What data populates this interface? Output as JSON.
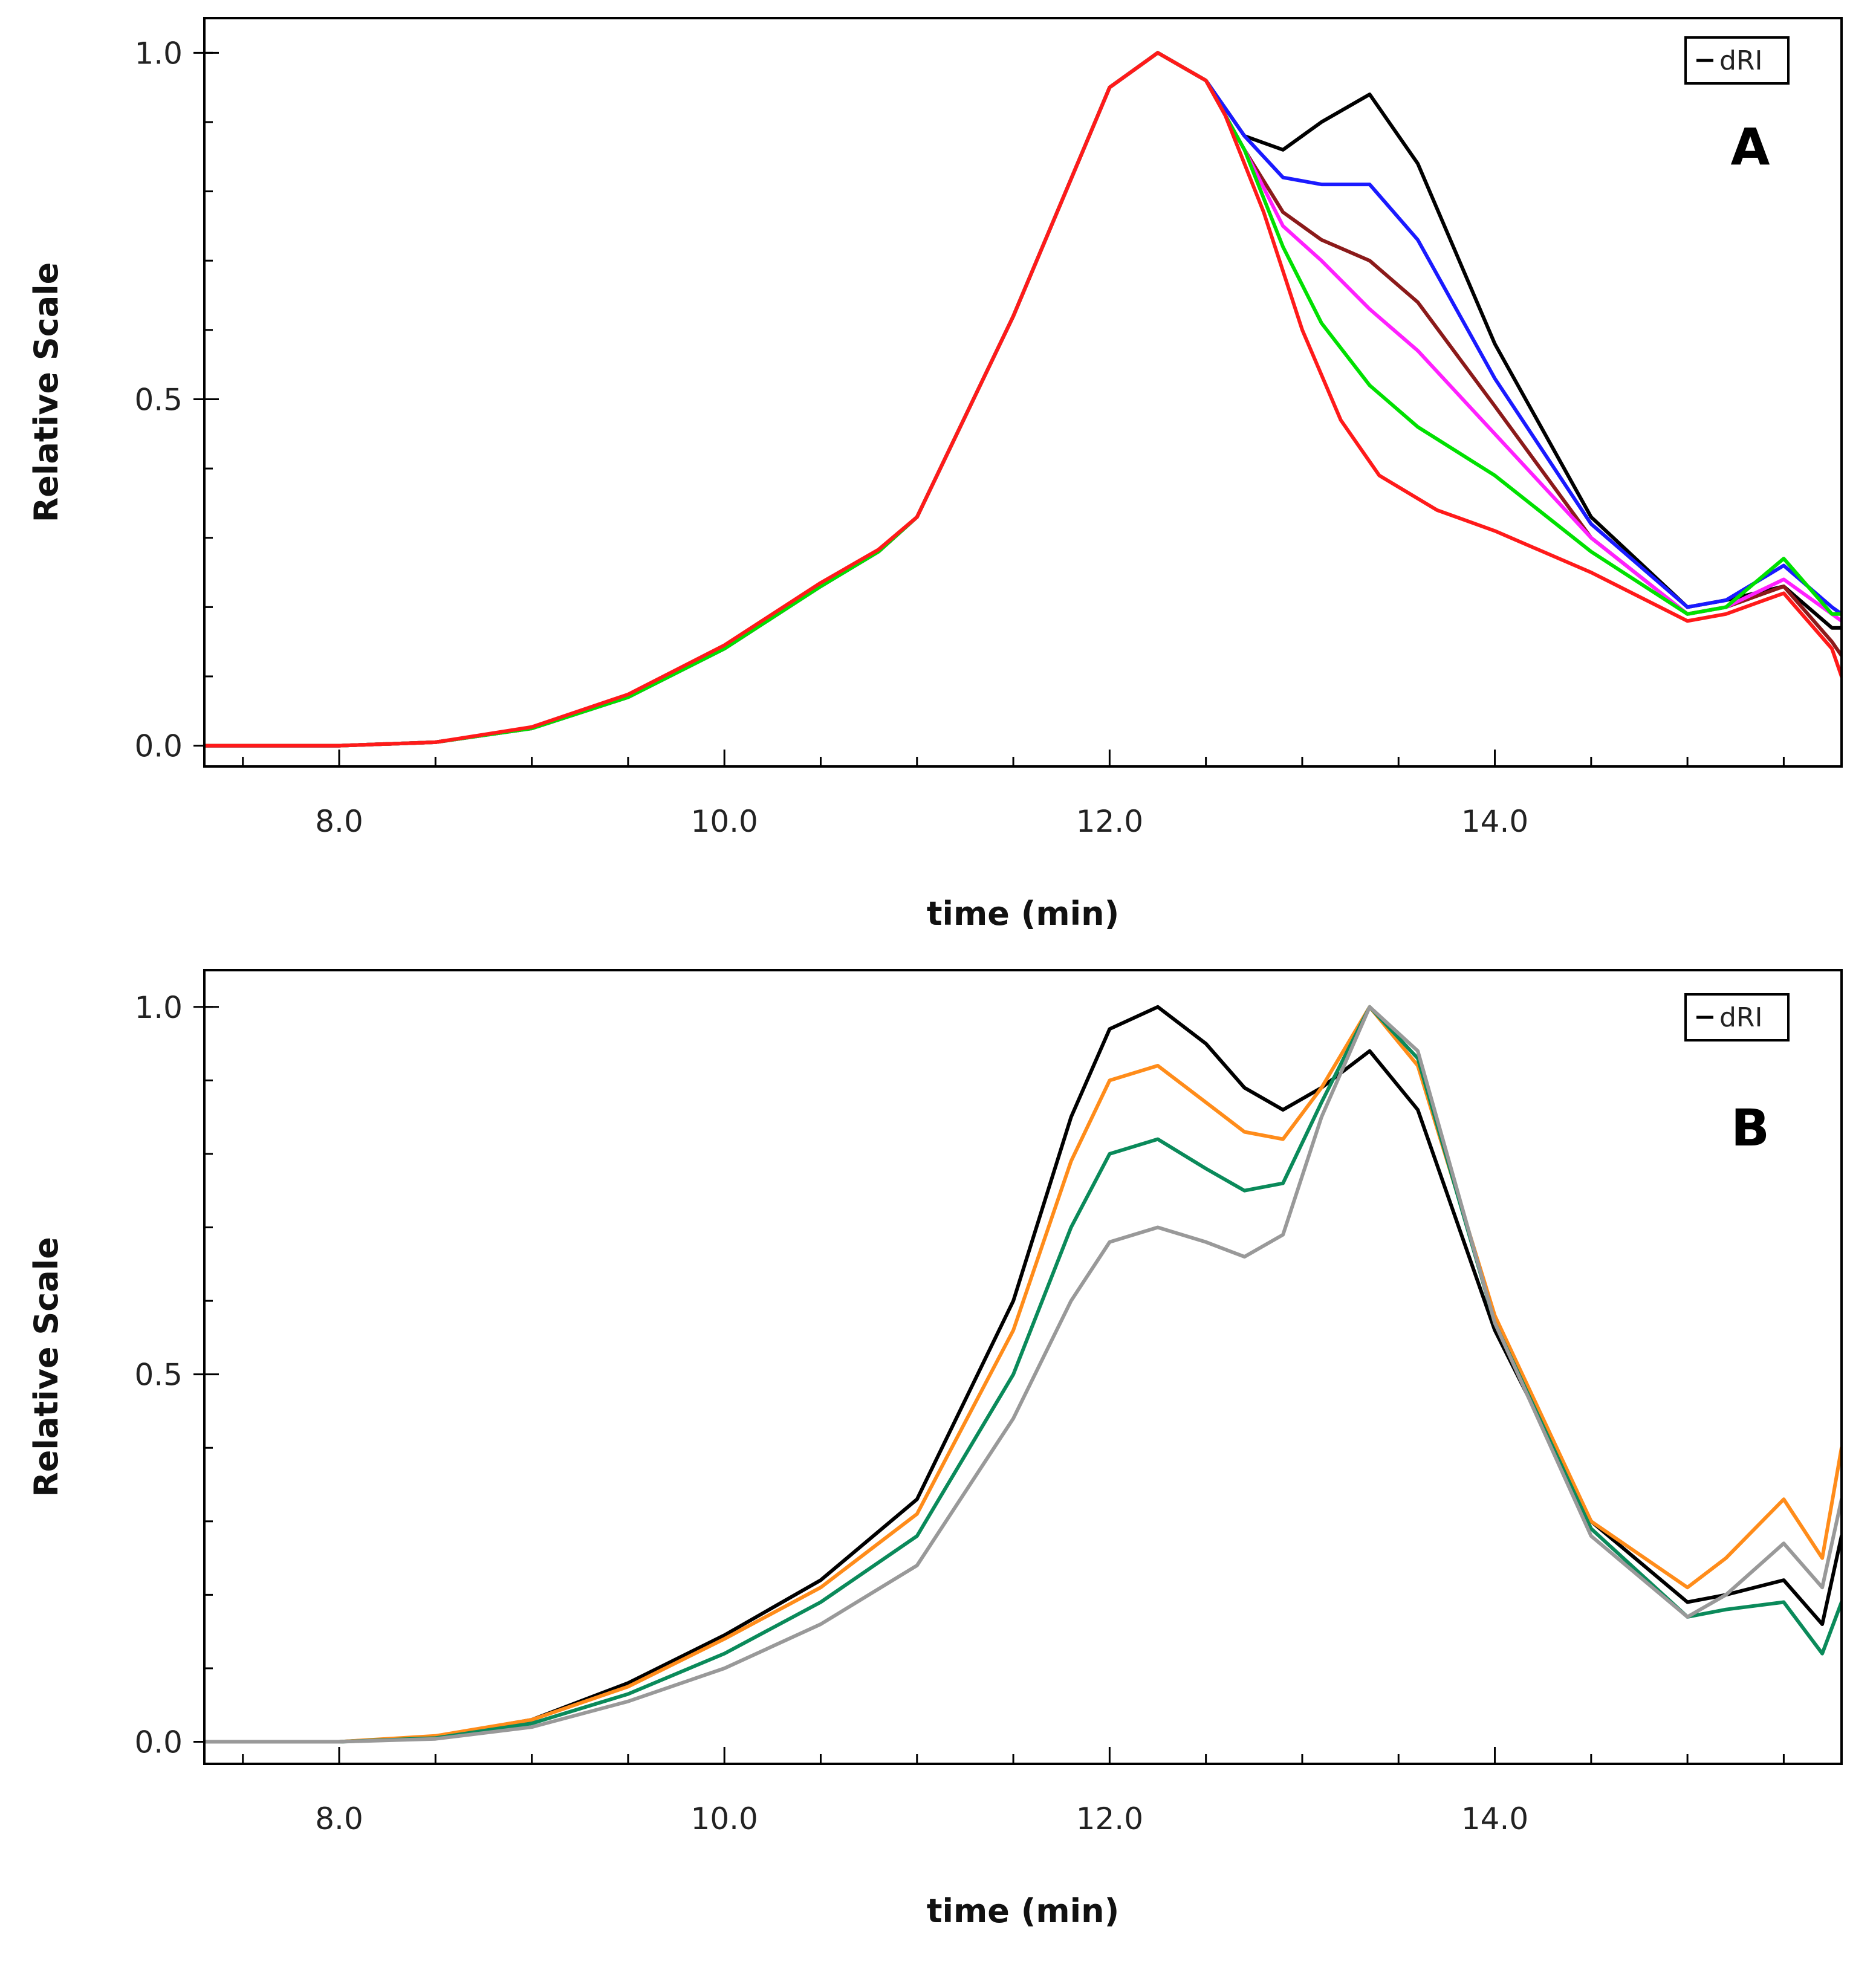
{
  "chart_data": [
    {
      "type": "line",
      "panel_label": "A",
      "xlabel": "time (min)",
      "ylabel": "Relative Scale",
      "xlim": [
        7.3,
        15.8
      ],
      "ylim": [
        -0.03,
        1.05
      ],
      "x_ticks": [
        8.0,
        10.0,
        12.0,
        14.0
      ],
      "x_tick_labels": [
        "8.0",
        "10.0",
        "12.0",
        "14.0"
      ],
      "y_ticks": [
        0.0,
        0.5,
        1.0
      ],
      "y_tick_labels": [
        "0.0",
        "0.5",
        "1.0"
      ],
      "grid": false,
      "legend": {
        "position": "top-right",
        "entries": [
          "dRI"
        ]
      },
      "series": [
        {
          "color": "#000000",
          "x": [
            7.3,
            8.0,
            8.5,
            9.0,
            9.5,
            10.0,
            10.5,
            10.8,
            11.0,
            11.5,
            12.0,
            12.25,
            12.5,
            12.7,
            12.9,
            13.1,
            13.35,
            13.6,
            14.0,
            14.5,
            15.0,
            15.2,
            15.5,
            15.75,
            15.8
          ],
          "values": [
            0,
            0,
            0.005,
            0.025,
            0.07,
            0.14,
            0.23,
            0.28,
            0.33,
            0.62,
            0.95,
            1.0,
            0.96,
            0.88,
            0.86,
            0.9,
            0.94,
            0.84,
            0.58,
            0.33,
            0.2,
            0.21,
            0.23,
            0.17,
            0.17
          ]
        },
        {
          "color": "#1a1aff",
          "x": [
            7.3,
            8.0,
            8.5,
            9.0,
            9.5,
            10.0,
            10.5,
            10.8,
            11.0,
            11.5,
            12.0,
            12.25,
            12.5,
            12.7,
            12.9,
            13.1,
            13.35,
            13.6,
            14.0,
            14.5,
            15.0,
            15.2,
            15.5,
            15.75,
            15.8
          ],
          "values": [
            0,
            0,
            0.005,
            0.025,
            0.07,
            0.14,
            0.23,
            0.28,
            0.33,
            0.62,
            0.95,
            1.0,
            0.96,
            0.88,
            0.82,
            0.81,
            0.81,
            0.73,
            0.53,
            0.32,
            0.2,
            0.21,
            0.26,
            0.2,
            0.19
          ]
        },
        {
          "color": "#8b1a1a",
          "x": [
            7.3,
            8.0,
            8.5,
            9.0,
            9.5,
            10.0,
            10.5,
            10.8,
            11.0,
            11.5,
            12.0,
            12.25,
            12.5,
            12.7,
            12.9,
            13.1,
            13.35,
            13.6,
            14.0,
            14.5,
            15.0,
            15.2,
            15.5,
            15.75,
            15.8
          ],
          "values": [
            0,
            0,
            0.005,
            0.025,
            0.07,
            0.14,
            0.23,
            0.28,
            0.33,
            0.62,
            0.95,
            1.0,
            0.96,
            0.86,
            0.77,
            0.73,
            0.7,
            0.64,
            0.49,
            0.3,
            0.19,
            0.2,
            0.23,
            0.15,
            0.13
          ]
        },
        {
          "color": "#ff20ff",
          "x": [
            7.3,
            8.0,
            8.5,
            9.0,
            9.5,
            10.0,
            10.5,
            10.8,
            11.0,
            11.5,
            12.0,
            12.25,
            12.5,
            12.7,
            12.9,
            13.1,
            13.35,
            13.6,
            14.0,
            14.5,
            15.0,
            15.2,
            15.5,
            15.75,
            15.8
          ],
          "values": [
            0,
            0,
            0.005,
            0.025,
            0.07,
            0.14,
            0.23,
            0.28,
            0.33,
            0.62,
            0.95,
            1.0,
            0.96,
            0.86,
            0.75,
            0.7,
            0.63,
            0.57,
            0.45,
            0.3,
            0.19,
            0.2,
            0.24,
            0.19,
            0.18
          ]
        },
        {
          "color": "#00e000",
          "x": [
            7.3,
            8.0,
            8.5,
            9.0,
            9.5,
            10.0,
            10.5,
            10.8,
            11.0,
            11.5,
            12.0,
            12.25,
            12.5,
            12.7,
            12.9,
            13.1,
            13.35,
            13.6,
            14.0,
            14.5,
            15.0,
            15.2,
            15.5,
            15.75,
            15.8
          ],
          "values": [
            0,
            0,
            0.005,
            0.025,
            0.07,
            0.14,
            0.23,
            0.28,
            0.33,
            0.62,
            0.95,
            1.0,
            0.96,
            0.86,
            0.72,
            0.61,
            0.52,
            0.46,
            0.39,
            0.28,
            0.19,
            0.2,
            0.27,
            0.19,
            0.19
          ]
        },
        {
          "color": "#ff1a1a",
          "x": [
            7.3,
            8.0,
            8.5,
            9.0,
            9.5,
            10.0,
            10.5,
            10.8,
            11.0,
            11.5,
            12.0,
            12.25,
            12.5,
            12.6,
            12.8,
            13.0,
            13.2,
            13.4,
            13.7,
            14.0,
            14.5,
            15.0,
            15.2,
            15.5,
            15.75,
            15.8
          ],
          "values": [
            0,
            0,
            0.005,
            0.027,
            0.074,
            0.145,
            0.235,
            0.283,
            0.33,
            0.62,
            0.95,
            1.0,
            0.96,
            0.91,
            0.77,
            0.6,
            0.47,
            0.39,
            0.34,
            0.31,
            0.25,
            0.18,
            0.19,
            0.22,
            0.14,
            0.1
          ]
        }
      ]
    },
    {
      "type": "line",
      "panel_label": "B",
      "xlabel": "time (min)",
      "ylabel": "Relative Scale",
      "xlim": [
        7.3,
        15.8
      ],
      "ylim": [
        -0.03,
        1.05
      ],
      "x_ticks": [
        8.0,
        10.0,
        12.0,
        14.0
      ],
      "x_tick_labels": [
        "8.0",
        "10.0",
        "12.0",
        "14.0"
      ],
      "y_ticks": [
        0.0,
        0.5,
        1.0
      ],
      "y_tick_labels": [
        "0.0",
        "0.5",
        "1.0"
      ],
      "grid": false,
      "legend": {
        "position": "top-right",
        "entries": [
          "dRI"
        ]
      },
      "series": [
        {
          "color": "#000000",
          "x": [
            7.3,
            8.0,
            8.5,
            9.0,
            9.5,
            10.0,
            10.5,
            11.0,
            11.5,
            11.8,
            12.0,
            12.25,
            12.5,
            12.7,
            12.9,
            13.1,
            13.35,
            13.6,
            14.0,
            14.5,
            15.0,
            15.2,
            15.5,
            15.7,
            15.8
          ],
          "values": [
            0,
            0,
            0.007,
            0.03,
            0.08,
            0.145,
            0.22,
            0.33,
            0.6,
            0.85,
            0.97,
            1.0,
            0.95,
            0.89,
            0.86,
            0.89,
            0.94,
            0.86,
            0.56,
            0.3,
            0.19,
            0.2,
            0.22,
            0.16,
            0.28
          ]
        },
        {
          "color": "#ff8c1a",
          "x": [
            7.3,
            8.0,
            8.5,
            9.0,
            9.5,
            10.0,
            10.5,
            11.0,
            11.5,
            11.8,
            12.0,
            12.25,
            12.5,
            12.7,
            12.9,
            13.1,
            13.35,
            13.6,
            14.0,
            14.5,
            15.0,
            15.2,
            15.5,
            15.7,
            15.8
          ],
          "values": [
            0,
            0,
            0.008,
            0.03,
            0.075,
            0.14,
            0.21,
            0.31,
            0.56,
            0.79,
            0.9,
            0.92,
            0.87,
            0.83,
            0.82,
            0.89,
            1.0,
            0.92,
            0.58,
            0.3,
            0.21,
            0.25,
            0.33,
            0.25,
            0.4
          ]
        },
        {
          "color": "#0a8a5a",
          "x": [
            7.3,
            8.0,
            8.5,
            9.0,
            9.5,
            10.0,
            10.5,
            11.0,
            11.5,
            11.8,
            12.0,
            12.25,
            12.5,
            12.7,
            12.9,
            13.1,
            13.35,
            13.6,
            14.0,
            14.5,
            15.0,
            15.2,
            15.5,
            15.7,
            15.8
          ],
          "values": [
            0,
            0,
            0.005,
            0.025,
            0.065,
            0.12,
            0.19,
            0.28,
            0.5,
            0.7,
            0.8,
            0.82,
            0.78,
            0.75,
            0.76,
            0.87,
            1.0,
            0.93,
            0.57,
            0.29,
            0.17,
            0.18,
            0.19,
            0.12,
            0.19
          ]
        },
        {
          "color": "#999999",
          "x": [
            7.3,
            8.0,
            8.5,
            9.0,
            9.5,
            10.0,
            10.5,
            11.0,
            11.5,
            11.8,
            12.0,
            12.25,
            12.5,
            12.7,
            12.9,
            13.1,
            13.35,
            13.6,
            14.0,
            14.5,
            15.0,
            15.2,
            15.5,
            15.7,
            15.8
          ],
          "values": [
            0,
            0,
            0.004,
            0.02,
            0.055,
            0.1,
            0.16,
            0.24,
            0.44,
            0.6,
            0.68,
            0.7,
            0.68,
            0.66,
            0.69,
            0.85,
            1.0,
            0.94,
            0.57,
            0.28,
            0.17,
            0.2,
            0.27,
            0.21,
            0.33
          ]
        }
      ]
    }
  ]
}
